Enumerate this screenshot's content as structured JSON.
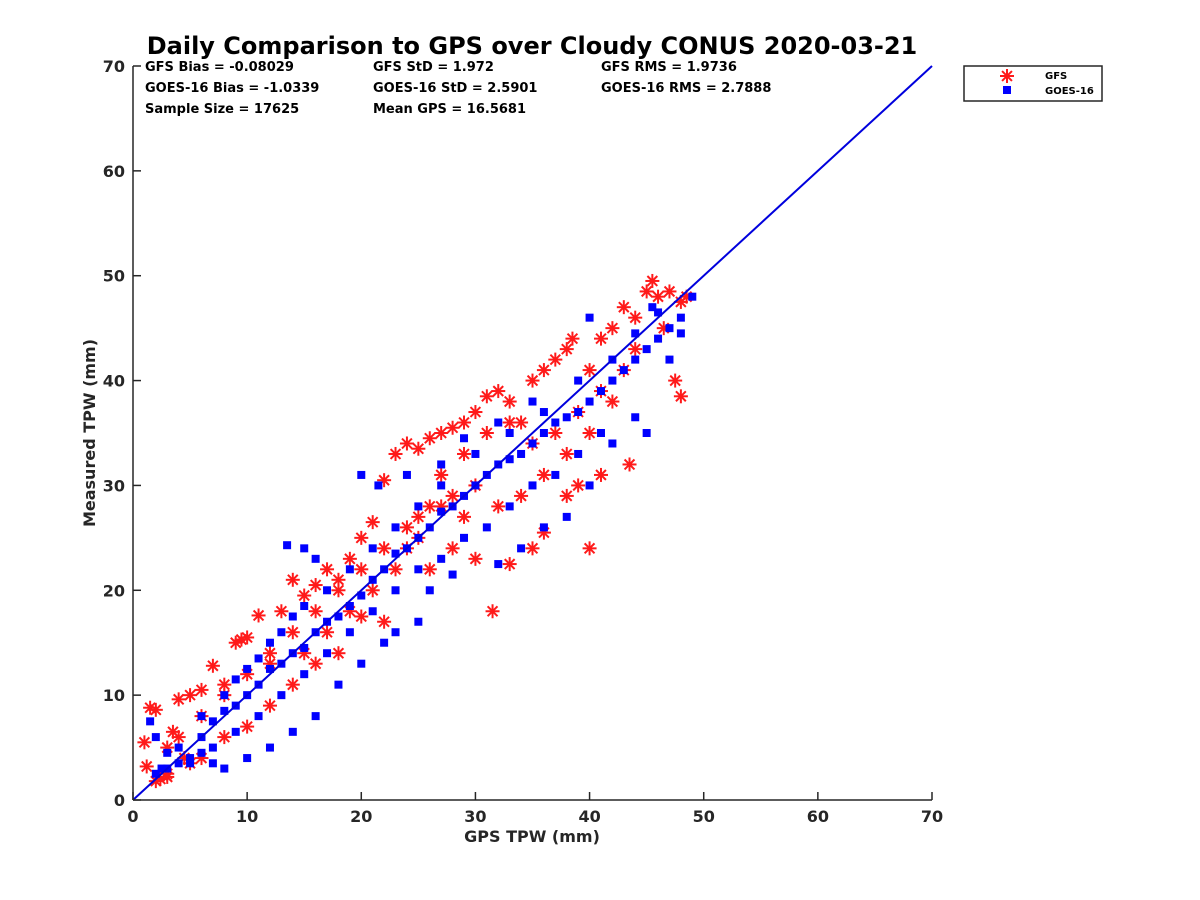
{
  "chart_data": {
    "type": "scatter",
    "title": "Daily Comparison to GPS over Cloudy CONUS 2020-03-21",
    "xlabel": "GPS TPW (mm)",
    "ylabel": "Measured TPW (mm)",
    "xlim": [
      0,
      70
    ],
    "ylim": [
      0,
      70
    ],
    "xticks": [
      0,
      10,
      20,
      30,
      40,
      50,
      60,
      70
    ],
    "yticks": [
      0,
      10,
      20,
      30,
      40,
      50,
      60,
      70
    ],
    "grid": false,
    "legend_position": "outside top-right",
    "stats": [
      [
        "GFS Bias = -0.08029",
        "GFS StD = 1.972",
        "GFS RMS = 1.9736"
      ],
      [
        "GOES-16 Bias = -1.0339",
        "GOES-16 StD = 2.5901",
        "GOES-16 RMS = 2.7888"
      ],
      [
        "Sample Size = 17625",
        "Mean GPS = 16.5681",
        ""
      ]
    ],
    "reference_line": {
      "from": [
        0,
        0
      ],
      "to": [
        70,
        70
      ],
      "color": "#0000dd"
    },
    "series": [
      {
        "name": "GFS",
        "marker": "asterisk",
        "color": "#ff1a1a",
        "points": [
          [
            1,
            5.5
          ],
          [
            1.5,
            8.8
          ],
          [
            2,
            8.6
          ],
          [
            1.2,
            3.2
          ],
          [
            2.4,
            2
          ],
          [
            3,
            2.2
          ],
          [
            3.5,
            6.5
          ],
          [
            4,
            9.6
          ],
          [
            4.5,
            4
          ],
          [
            5,
            10
          ],
          [
            6,
            10.5
          ],
          [
            7,
            12.8
          ],
          [
            8,
            11
          ],
          [
            9,
            15
          ],
          [
            9.5,
            15.3
          ],
          [
            10,
            15.5
          ],
          [
            11,
            17.6
          ],
          [
            12,
            13
          ],
          [
            13,
            18
          ],
          [
            14,
            21
          ],
          [
            15,
            19.5
          ],
          [
            16,
            20.5
          ],
          [
            17,
            22
          ],
          [
            18,
            21
          ],
          [
            19,
            23
          ],
          [
            20,
            25
          ],
          [
            21,
            26.5
          ],
          [
            22,
            30.5
          ],
          [
            23,
            33
          ],
          [
            24,
            34
          ],
          [
            25,
            33.5
          ],
          [
            26,
            34.5
          ],
          [
            27,
            35
          ],
          [
            28,
            35.5
          ],
          [
            29,
            36
          ],
          [
            30,
            37
          ],
          [
            31,
            38.5
          ],
          [
            32,
            39
          ],
          [
            33,
            38
          ],
          [
            34,
            36
          ],
          [
            35,
            40
          ],
          [
            36,
            41
          ],
          [
            37,
            42
          ],
          [
            38,
            43
          ],
          [
            38.5,
            44
          ],
          [
            40,
            41
          ],
          [
            41,
            44
          ],
          [
            42,
            45
          ],
          [
            43,
            47
          ],
          [
            44,
            46
          ],
          [
            45,
            48.5
          ],
          [
            45.5,
            49.5
          ],
          [
            46,
            48
          ],
          [
            47,
            48.5
          ],
          [
            48,
            47.5
          ],
          [
            48.5,
            48
          ],
          [
            46.5,
            45
          ],
          [
            47.5,
            40
          ],
          [
            48,
            38.5
          ],
          [
            43.5,
            32
          ],
          [
            40,
            24
          ],
          [
            35,
            24
          ],
          [
            33,
            22.5
          ],
          [
            31.5,
            18
          ],
          [
            30,
            23
          ],
          [
            28,
            24
          ],
          [
            36,
            25.5
          ],
          [
            38,
            29
          ],
          [
            39,
            30
          ],
          [
            41,
            31
          ],
          [
            29,
            27
          ],
          [
            27,
            28
          ],
          [
            25,
            25
          ],
          [
            24,
            24
          ],
          [
            26,
            22
          ],
          [
            22,
            17
          ],
          [
            20,
            17.5
          ],
          [
            18,
            14
          ],
          [
            16,
            13
          ],
          [
            14,
            11
          ],
          [
            12,
            9
          ],
          [
            10,
            7
          ],
          [
            8,
            6
          ],
          [
            6,
            4
          ],
          [
            5,
            3.5
          ],
          [
            3,
            2.5
          ],
          [
            2,
            1.8
          ],
          [
            15,
            14
          ],
          [
            17,
            16
          ],
          [
            19,
            18
          ],
          [
            21,
            20
          ],
          [
            23,
            22
          ],
          [
            25,
            27
          ],
          [
            27,
            31
          ],
          [
            29,
            33
          ],
          [
            31,
            35
          ],
          [
            33,
            36
          ],
          [
            35,
            34
          ],
          [
            37,
            35
          ],
          [
            39,
            37
          ],
          [
            41,
            39
          ],
          [
            43,
            41
          ],
          [
            44,
            43
          ],
          [
            42,
            38
          ],
          [
            40,
            35
          ],
          [
            38,
            33
          ],
          [
            36,
            31
          ],
          [
            34,
            29
          ],
          [
            32,
            28
          ],
          [
            30,
            30
          ],
          [
            28,
            29
          ],
          [
            26,
            28
          ],
          [
            24,
            26
          ],
          [
            22,
            24
          ],
          [
            20,
            22
          ],
          [
            18,
            20
          ],
          [
            16,
            18
          ],
          [
            14,
            16
          ],
          [
            12,
            14
          ],
          [
            10,
            12
          ],
          [
            8,
            10
          ],
          [
            6,
            8
          ],
          [
            4,
            6
          ],
          [
            3,
            5
          ]
        ]
      },
      {
        "name": "GOES-16",
        "marker": "square",
        "color": "#0000ff",
        "points": [
          [
            1.5,
            7.5
          ],
          [
            2,
            6
          ],
          [
            2.5,
            3
          ],
          [
            3,
            4.5
          ],
          [
            4,
            5
          ],
          [
            5,
            4
          ],
          [
            6,
            6
          ],
          [
            7,
            7.5
          ],
          [
            8,
            8.5
          ],
          [
            9,
            9
          ],
          [
            10,
            10
          ],
          [
            11,
            11
          ],
          [
            12,
            12.5
          ],
          [
            13,
            13
          ],
          [
            14,
            14
          ],
          [
            15,
            14.5
          ],
          [
            16,
            16
          ],
          [
            17,
            17
          ],
          [
            18,
            17.5
          ],
          [
            19,
            18.5
          ],
          [
            20,
            19.5
          ],
          [
            21,
            21
          ],
          [
            22,
            22
          ],
          [
            23,
            23.5
          ],
          [
            24,
            24
          ],
          [
            25,
            25
          ],
          [
            26,
            26
          ],
          [
            27,
            27.5
          ],
          [
            28,
            28
          ],
          [
            29,
            29
          ],
          [
            30,
            30
          ],
          [
            31,
            31
          ],
          [
            32,
            32
          ],
          [
            33,
            32.5
          ],
          [
            34,
            33
          ],
          [
            35,
            34
          ],
          [
            36,
            35
          ],
          [
            37,
            36
          ],
          [
            38,
            36.5
          ],
          [
            39,
            37
          ],
          [
            40,
            38
          ],
          [
            41,
            39
          ],
          [
            42,
            40
          ],
          [
            43,
            41
          ],
          [
            44,
            42
          ],
          [
            45,
            43
          ],
          [
            46,
            44
          ],
          [
            47,
            45
          ],
          [
            48,
            46
          ],
          [
            49,
            48
          ],
          [
            13.5,
            24.3
          ],
          [
            15,
            24
          ],
          [
            16,
            23
          ],
          [
            20,
            31
          ],
          [
            21.5,
            30
          ],
          [
            24,
            31
          ],
          [
            27,
            32
          ],
          [
            29,
            34.5
          ],
          [
            32,
            36
          ],
          [
            35,
            38
          ],
          [
            40,
            46
          ],
          [
            45.5,
            47
          ],
          [
            47,
            42
          ],
          [
            48,
            44.5
          ],
          [
            45,
            35
          ],
          [
            44,
            36.5
          ],
          [
            42,
            34
          ],
          [
            40,
            30
          ],
          [
            38,
            27
          ],
          [
            36,
            26
          ],
          [
            34,
            24
          ],
          [
            32,
            22.5
          ],
          [
            28,
            21.5
          ],
          [
            26,
            20
          ],
          [
            25,
            17
          ],
          [
            23,
            16
          ],
          [
            22,
            15
          ],
          [
            20,
            13
          ],
          [
            18,
            11
          ],
          [
            16,
            8
          ],
          [
            14,
            6.5
          ],
          [
            12,
            5
          ],
          [
            10,
            4
          ],
          [
            8,
            3
          ],
          [
            7,
            3.5
          ],
          [
            5,
            3.5
          ],
          [
            3,
            3
          ],
          [
            2,
            2.5
          ],
          [
            11,
            13.5
          ],
          [
            12,
            15
          ],
          [
            13,
            16
          ],
          [
            14,
            17.5
          ],
          [
            15,
            18.5
          ],
          [
            17,
            20
          ],
          [
            19,
            22
          ],
          [
            21,
            24
          ],
          [
            23,
            26
          ],
          [
            25,
            28
          ],
          [
            27,
            30
          ],
          [
            30,
            33
          ],
          [
            33,
            35
          ],
          [
            36,
            37
          ],
          [
            39,
            40
          ],
          [
            42,
            42
          ],
          [
            44,
            44.5
          ],
          [
            46,
            46.5
          ],
          [
            41,
            35
          ],
          [
            39,
            33
          ],
          [
            37,
            31
          ],
          [
            35,
            30
          ],
          [
            33,
            28
          ],
          [
            31,
            26
          ],
          [
            29,
            25
          ],
          [
            27,
            23
          ],
          [
            25,
            22
          ],
          [
            23,
            20
          ],
          [
            21,
            18
          ],
          [
            19,
            16
          ],
          [
            17,
            14
          ],
          [
            15,
            12
          ],
          [
            13,
            10
          ],
          [
            11,
            8
          ],
          [
            9,
            6.5
          ],
          [
            7,
            5
          ],
          [
            6,
            4.5
          ],
          [
            4,
            3.5
          ],
          [
            9,
            11.5
          ],
          [
            8,
            10
          ],
          [
            10,
            12.5
          ],
          [
            6,
            8
          ]
        ]
      }
    ]
  }
}
